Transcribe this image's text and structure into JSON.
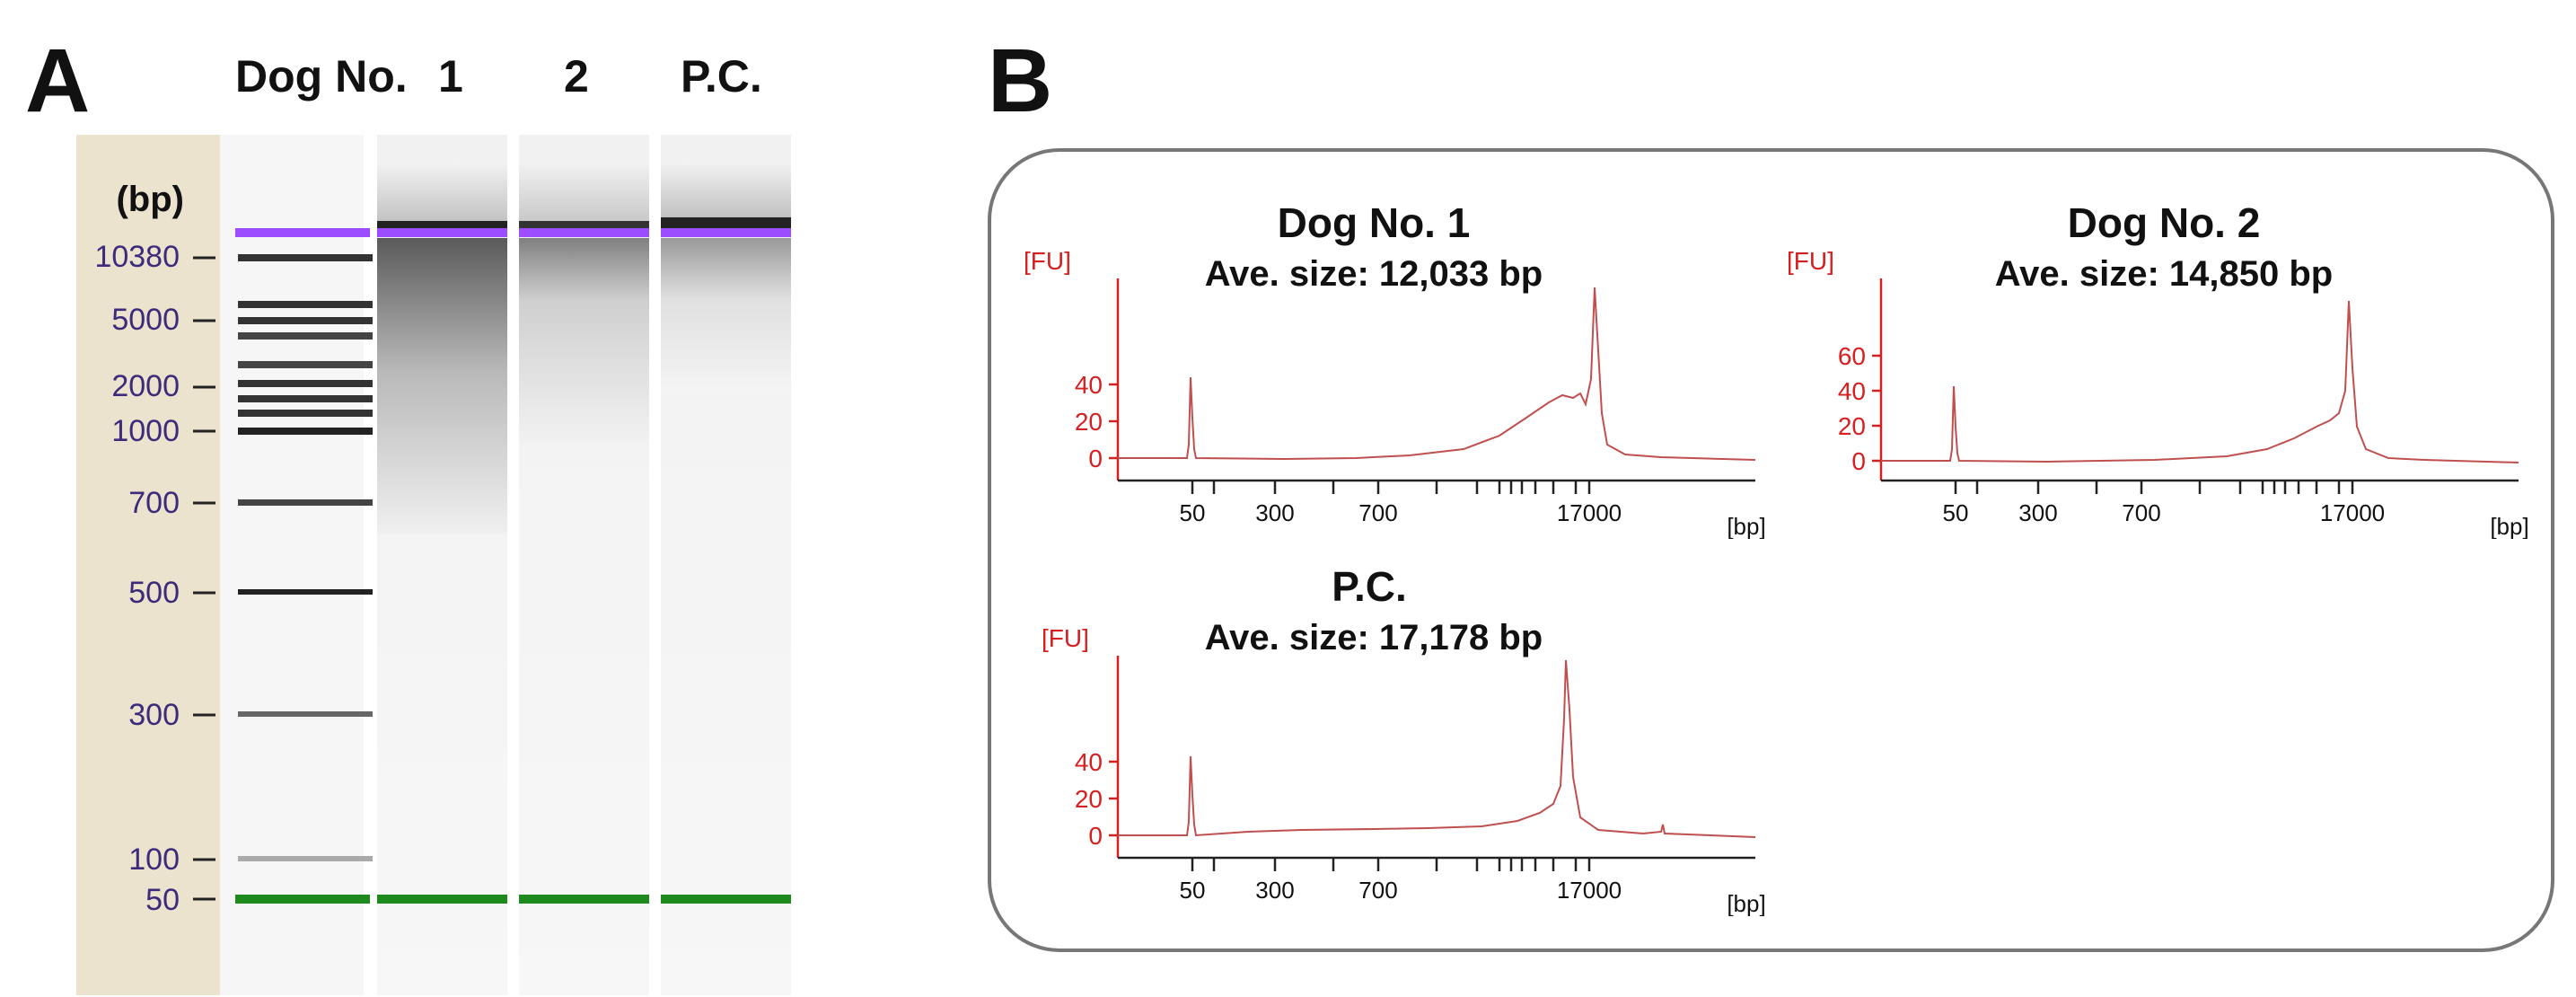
{
  "panelA": {
    "label": "A",
    "lane_headers": [
      "Dog No.",
      "1",
      "2",
      "P.C."
    ],
    "unit": "(bp)",
    "ladder": [
      "10380",
      "5000",
      "2000",
      "1000",
      "700",
      "500",
      "300",
      "100",
      "50"
    ],
    "colors": {
      "ladder_bg": "#ece3cf",
      "upper_marker": "#9b4dff",
      "lower_marker": "#1e8a1e",
      "label_text": "#3b2b7a"
    }
  },
  "panelB": {
    "label": "B",
    "traces": [
      {
        "title": "Dog No. 1",
        "subtitle": "Ave. size: 12,033 bp",
        "y_unit": "[FU]",
        "x_unit": "[bp]",
        "y_ticks": [
          "0",
          "20",
          "40"
        ],
        "x_ticks": [
          "50",
          "300",
          "700",
          "17000"
        ]
      },
      {
        "title": "Dog No. 2",
        "subtitle": "Ave. size: 14,850 bp",
        "y_unit": "[FU]",
        "x_unit": "[bp]",
        "y_ticks": [
          "0",
          "20",
          "40",
          "60"
        ],
        "x_ticks": [
          "50",
          "300",
          "700",
          "17000"
        ]
      },
      {
        "title": "P.C.",
        "subtitle": "Ave. size: 17,178 bp",
        "y_unit": "[FU]",
        "x_unit": "[bp]",
        "y_ticks": [
          "0",
          "20",
          "40"
        ],
        "x_ticks": [
          "50",
          "300",
          "700",
          "17000"
        ]
      }
    ],
    "colors": {
      "axis": "#d42020",
      "trace": "#c05050",
      "tick_text": "#111111"
    }
  }
}
